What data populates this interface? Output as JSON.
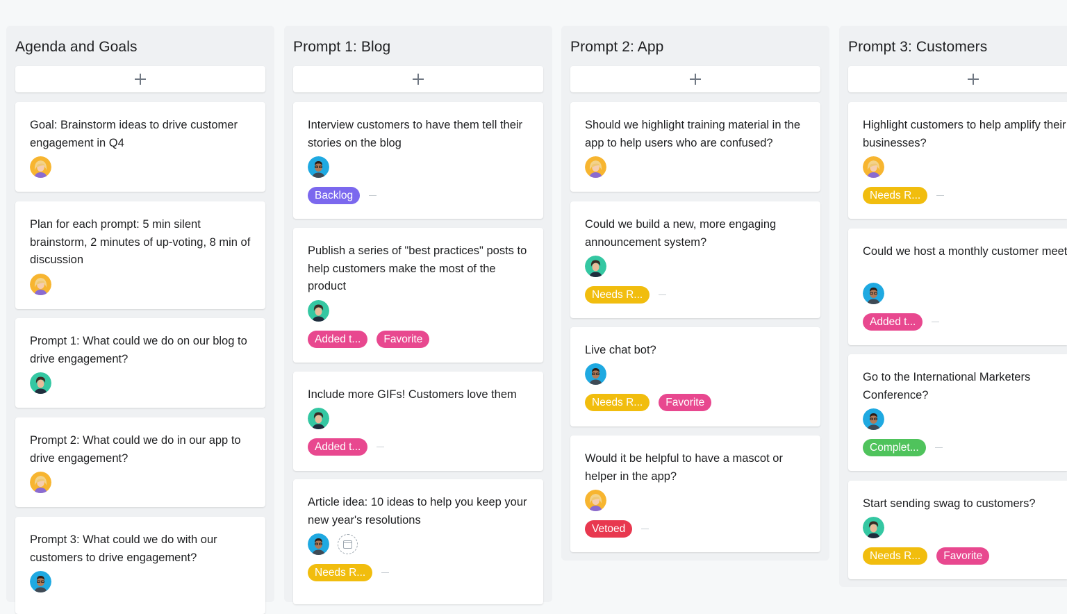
{
  "colors": {
    "backlog": "#7b68ee",
    "added": "#e8488f",
    "favorite": "#e8488f",
    "needs": "#f1bd0e",
    "complete": "#4fc35c",
    "vetoed": "#e8384f"
  },
  "columns": [
    {
      "title": "Agenda and Goals",
      "add_icon": "plus-icon",
      "cards": [
        {
          "text": "Goal: Brainstorm ideas to drive customer engagement in Q4",
          "avatar": "blonde-woman",
          "tags": []
        },
        {
          "text": "Plan for each prompt: 5 min silent brainstorm, 2 minutes of up-voting, 8 min of discussion",
          "avatar": "blonde-woman",
          "tags": []
        },
        {
          "text": "Prompt 1: What could we do on our blog to drive engagement?",
          "avatar": "dark-hair-woman",
          "tags": []
        },
        {
          "text": "Prompt 2: What could we do in our app to drive engagement?",
          "avatar": "blonde-woman",
          "tags": []
        },
        {
          "text": "Prompt 3: What could we do with our customers to drive engagement?",
          "avatar": "man-glasses",
          "tags": []
        }
      ]
    },
    {
      "title": "Prompt 1: Blog",
      "add_icon": "plus-icon",
      "cards": [
        {
          "text": "Interview customers to have them tell their stories on the blog",
          "avatar": "man-glasses",
          "tags": [
            {
              "label": "Backlog",
              "color": "backlog"
            }
          ]
        },
        {
          "text": "Publish a series of \"best practices\" posts to help customers make the most of the product",
          "avatar": "dark-hair-woman",
          "tags": [
            {
              "label": "Added t...",
              "color": "added"
            },
            {
              "label": "Favorite",
              "color": "favorite"
            }
          ]
        },
        {
          "text": "Include more GIFs! Customers love them",
          "avatar": "dark-hair-woman",
          "tags": [
            {
              "label": "Added t...",
              "color": "added"
            }
          ]
        },
        {
          "text": "Article idea: 10 ideas to help you keep your new year's resolutions",
          "avatar": "man-glasses",
          "due_date_icon": "calendar-icon",
          "tags": [
            {
              "label": "Needs R...",
              "color": "needs"
            }
          ]
        }
      ]
    },
    {
      "title": "Prompt 2: App",
      "add_icon": "plus-icon",
      "cards": [
        {
          "text": "Should we highlight training material in the app to help users who are confused?",
          "avatar": "blonde-woman",
          "tags": []
        },
        {
          "text": "Could we build a new, more engaging announcement system?",
          "avatar": "dark-hair-woman",
          "tags": [
            {
              "label": "Needs R...",
              "color": "needs"
            }
          ]
        },
        {
          "text": "Live chat bot?",
          "avatar": "man-glasses",
          "tags": [
            {
              "label": "Needs R...",
              "color": "needs"
            },
            {
              "label": "Favorite",
              "color": "favorite"
            }
          ]
        },
        {
          "text": "Would it be helpful to have a mascot or helper in the app?",
          "avatar": "blonde-woman",
          "tags": [
            {
              "label": "Vetoed",
              "color": "vetoed"
            }
          ]
        }
      ]
    },
    {
      "title": "Prompt 3: Customers",
      "add_icon": "plus-icon",
      "cards": [
        {
          "text": "Highlight customers to help amplify their businesses?",
          "avatar": "blonde-woman",
          "tags": [
            {
              "label": "Needs R...",
              "color": "needs"
            }
          ]
        },
        {
          "text": "Could we host a monthly customer meet up?",
          "avatar": "man-glasses",
          "tags": [
            {
              "label": "Added t...",
              "color": "added"
            }
          ]
        },
        {
          "text": "Go to the International Marketers Conference?",
          "avatar": "man-glasses",
          "tags": [
            {
              "label": "Complet...",
              "color": "complete"
            }
          ]
        },
        {
          "text": "Start sending swag to customers?",
          "avatar": "dark-hair-woman",
          "tags": [
            {
              "label": "Needs R...",
              "color": "needs"
            },
            {
              "label": "Favorite",
              "color": "favorite"
            }
          ]
        }
      ]
    }
  ]
}
